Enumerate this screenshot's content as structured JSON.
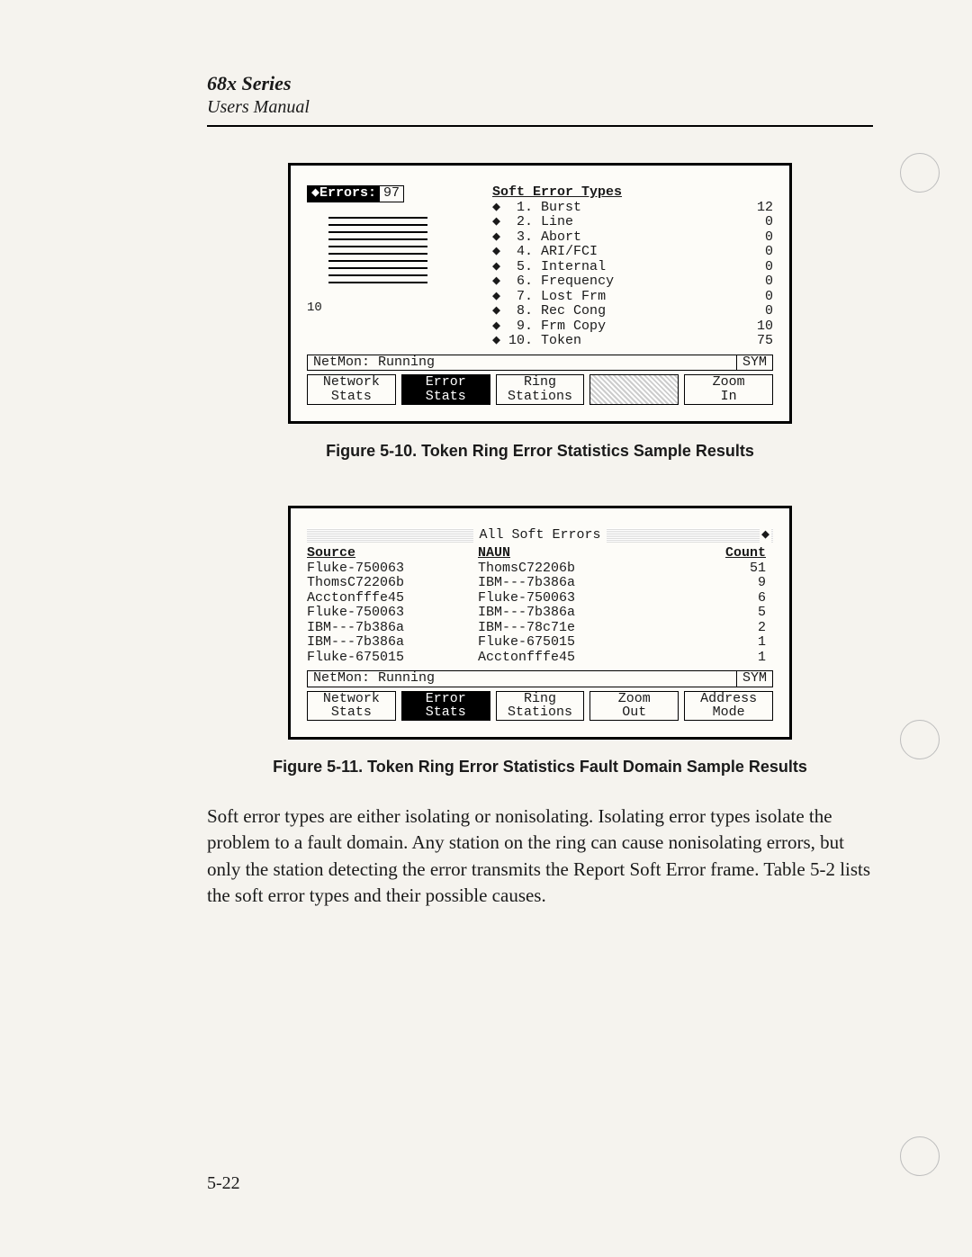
{
  "header": {
    "title": "68x Series",
    "subtitle": "Users Manual"
  },
  "figure1": {
    "errors_label": "◆Errors:",
    "errors_value": "97",
    "dial_low": "10",
    "set_title": "Soft Error Types",
    "types": [
      {
        "n": "1",
        "name": "Burst",
        "val": "12"
      },
      {
        "n": "2",
        "name": "Line",
        "val": "0"
      },
      {
        "n": "3",
        "name": "Abort",
        "val": "0"
      },
      {
        "n": "4",
        "name": "ARI/FCI",
        "val": "0"
      },
      {
        "n": "5",
        "name": "Internal",
        "val": "0"
      },
      {
        "n": "6",
        "name": "Frequency",
        "val": "0"
      },
      {
        "n": "7",
        "name": "Lost Frm",
        "val": "0"
      },
      {
        "n": "8",
        "name": "Rec Cong",
        "val": "0"
      },
      {
        "n": "9",
        "name": "Frm Copy",
        "val": "10"
      },
      {
        "n": "10",
        "name": "Token",
        "val": "75"
      }
    ],
    "status_left": "NetMon: Running",
    "status_right": "SYM",
    "softkeys": [
      {
        "l1": "Network",
        "l2": "Stats",
        "sel": false
      },
      {
        "l1": "Error",
        "l2": "Stats",
        "sel": true
      },
      {
        "l1": "Ring",
        "l2": "Stations",
        "sel": false
      },
      {
        "l1": "",
        "l2": "",
        "sel": false,
        "hatch": true
      },
      {
        "l1": "Zoom",
        "l2": "In",
        "sel": false
      }
    ],
    "caption": "Figure 5-10.  Token Ring Error Statistics Sample Results"
  },
  "figure2": {
    "title": "All Soft Errors",
    "col_source": "Source",
    "col_naun": "NAUN",
    "col_count": "Count",
    "rows": [
      {
        "src": "Fluke-750063",
        "naun": "ThomsC72206b",
        "cnt": "51"
      },
      {
        "src": "ThomsC72206b",
        "naun": "IBM---7b386a",
        "cnt": "9"
      },
      {
        "src": "Acctonfffe45",
        "naun": "Fluke-750063",
        "cnt": "6"
      },
      {
        "src": "Fluke-750063",
        "naun": "IBM---7b386a",
        "cnt": "5"
      },
      {
        "src": "IBM---7b386a",
        "naun": "IBM---78c71e",
        "cnt": "2"
      },
      {
        "src": "IBM---7b386a",
        "naun": "Fluke-675015",
        "cnt": "1"
      },
      {
        "src": "Fluke-675015",
        "naun": "Acctonfffe45",
        "cnt": "1"
      }
    ],
    "status_left": "NetMon: Running",
    "status_right": "SYM",
    "softkeys": [
      {
        "l1": "Network",
        "l2": "Stats",
        "sel": false
      },
      {
        "l1": "Error",
        "l2": "Stats",
        "sel": true
      },
      {
        "l1": "Ring",
        "l2": "Stations",
        "sel": false
      },
      {
        "l1": "Zoom",
        "l2": "Out",
        "sel": false
      },
      {
        "l1": "Address",
        "l2": "Mode",
        "sel": false
      }
    ],
    "caption": "Figure 5-11.  Token Ring Error Statistics Fault Domain Sample Results"
  },
  "body_text": "Soft error types are either isolating or nonisolating.  Isolating error types isolate the problem to a fault domain.  Any station on the ring can cause nonisolating errors, but only the station detecting the error transmits the Report Soft Error frame.  Table 5-2 lists the soft error types and their possible causes.",
  "page_number": "5-22"
}
